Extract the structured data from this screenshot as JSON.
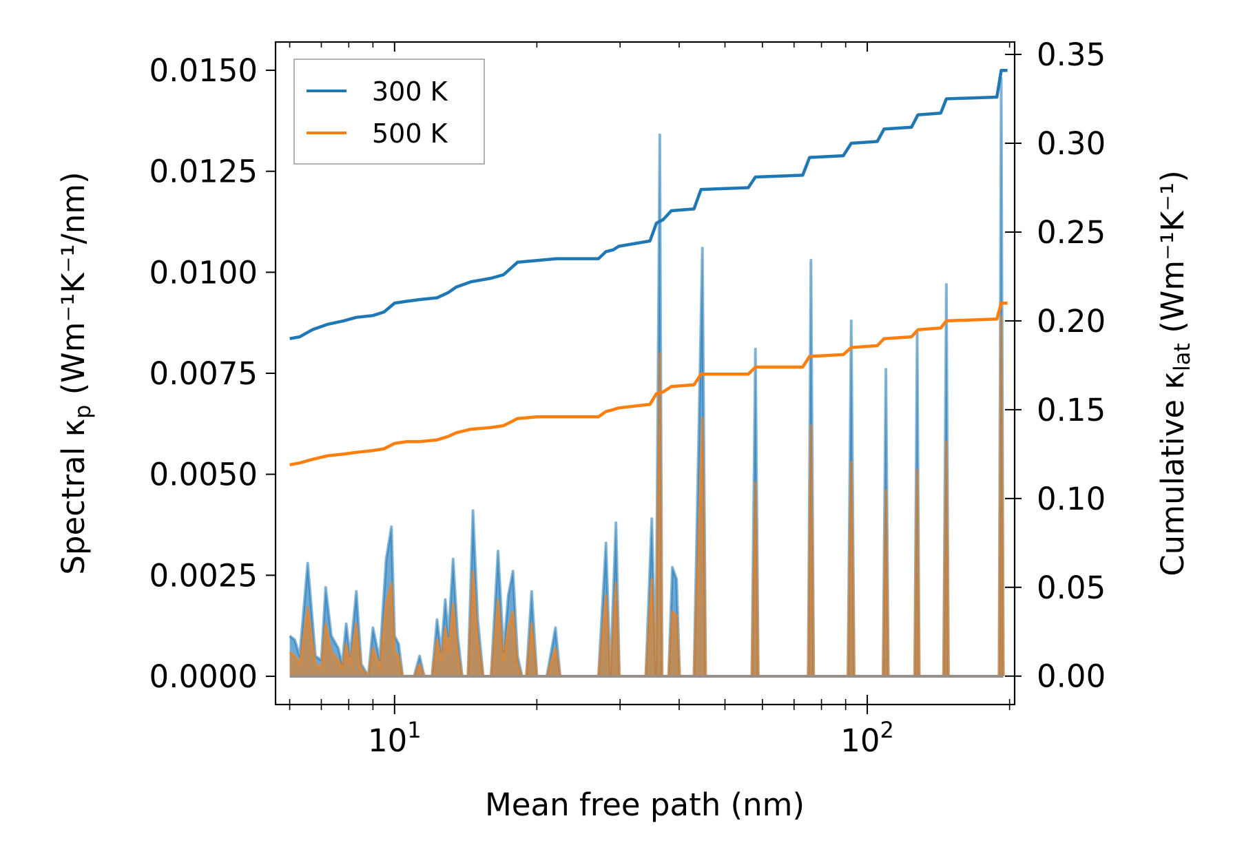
{
  "chart_data": {
    "type": "line",
    "xscale": "log",
    "xlabel": "Mean free path (nm)",
    "ylabel_left": {
      "main": "Spectral κ",
      "sub": "p",
      "units": " (Wm⁻¹K⁻¹/nm)"
    },
    "ylabel_right": {
      "main": "Cumulative κ",
      "sub": "lat",
      "units": " (Wm⁻¹K⁻¹)"
    },
    "xlim": [
      5.6,
      205
    ],
    "ylim_left": [
      -0.0007,
      0.0157
    ],
    "ylim_right": [
      -0.016,
      0.357
    ],
    "x_ticks": [
      {
        "value": 10,
        "base": "10",
        "exp": "1"
      },
      {
        "value": 100,
        "base": "10",
        "exp": "2"
      }
    ],
    "y_ticks_left": [
      {
        "value": 0.0,
        "label": "0.0000"
      },
      {
        "value": 0.0025,
        "label": "0.0025"
      },
      {
        "value": 0.005,
        "label": "0.0050"
      },
      {
        "value": 0.0075,
        "label": "0.0075"
      },
      {
        "value": 0.01,
        "label": "0.0100"
      },
      {
        "value": 0.0125,
        "label": "0.0125"
      },
      {
        "value": 0.015,
        "label": "0.0150"
      }
    ],
    "y_ticks_right": [
      {
        "value": 0.0,
        "label": "0.00"
      },
      {
        "value": 0.05,
        "label": "0.05"
      },
      {
        "value": 0.1,
        "label": "0.10"
      },
      {
        "value": 0.15,
        "label": "0.15"
      },
      {
        "value": 0.2,
        "label": "0.20"
      },
      {
        "value": 0.25,
        "label": "0.25"
      },
      {
        "value": 0.3,
        "label": "0.30"
      },
      {
        "value": 0.35,
        "label": "0.35"
      }
    ],
    "legend": {
      "position": "top-left"
    },
    "colors": {
      "300K": "#1f77b4",
      "500K": "#ff7f0e",
      "fill_300": "#5b9fd0",
      "fill_500": "#c48b52"
    },
    "series": [
      {
        "name": "300 K",
        "role": "spectral",
        "axis": "left",
        "points": [
          [
            6.0,
            0.001
          ],
          [
            6.15,
            0.0009
          ],
          [
            6.3,
            0.0005
          ],
          [
            6.55,
            0.0028
          ],
          [
            6.8,
            0.0005
          ],
          [
            7.0,
            0.0004
          ],
          [
            7.15,
            0.0022
          ],
          [
            7.35,
            0.001
          ],
          [
            7.6,
            0.0007
          ],
          [
            7.75,
            0.0003
          ],
          [
            7.9,
            0.0013
          ],
          [
            8.05,
            0.0005
          ],
          [
            8.3,
            0.0021
          ],
          [
            8.5,
            0.0003
          ],
          [
            8.8,
            0.0
          ],
          [
            9.0,
            0.0012
          ],
          [
            9.3,
            0.0004
          ],
          [
            9.6,
            0.0029
          ],
          [
            9.85,
            0.0037
          ],
          [
            10.0,
            0.001
          ],
          [
            10.2,
            0.0008
          ],
          [
            10.4,
            0.0
          ],
          [
            11.0,
            0.0
          ],
          [
            11.3,
            0.0005
          ],
          [
            11.55,
            0.0
          ],
          [
            12.0,
            0.0
          ],
          [
            12.3,
            0.0014
          ],
          [
            12.55,
            0.0006
          ],
          [
            12.8,
            0.0019
          ],
          [
            13.0,
            0.001
          ],
          [
            13.3,
            0.0029
          ],
          [
            13.6,
            0.001
          ],
          [
            13.9,
            0.0
          ],
          [
            14.3,
            0.0
          ],
          [
            14.65,
            0.0041
          ],
          [
            15.0,
            0.0014
          ],
          [
            15.4,
            0.0
          ],
          [
            16.0,
            0.0
          ],
          [
            16.55,
            0.0031
          ],
          [
            17.0,
            0.0006
          ],
          [
            17.4,
            0.002
          ],
          [
            17.8,
            0.0026
          ],
          [
            18.2,
            0.0005
          ],
          [
            18.6,
            0.0
          ],
          [
            19.0,
            0.0
          ],
          [
            19.5,
            0.0021
          ],
          [
            20.0,
            0.0
          ],
          [
            21.0,
            0.0
          ],
          [
            21.9,
            0.0012
          ],
          [
            22.4,
            0.0
          ],
          [
            23.0,
            0.0
          ],
          [
            27.0,
            0.0
          ],
          [
            28.0,
            0.0033
          ],
          [
            28.6,
            0.0
          ],
          [
            29.4,
            0.0038
          ],
          [
            29.9,
            0.0
          ],
          [
            34.0,
            0.0
          ],
          [
            35.0,
            0.0039
          ],
          [
            35.7,
            0.0
          ],
          [
            36.4,
            0.0134
          ],
          [
            36.8,
            0.0
          ],
          [
            38.0,
            0.0
          ],
          [
            38.7,
            0.0027
          ],
          [
            39.5,
            0.0024
          ],
          [
            40.1,
            0.0
          ],
          [
            43.0,
            0.0
          ],
          [
            44.8,
            0.0106
          ],
          [
            45.5,
            0.0
          ],
          [
            57.0,
            0.0
          ],
          [
            58.0,
            0.0081
          ],
          [
            58.8,
            0.0
          ],
          [
            75.0,
            0.0
          ],
          [
            76.0,
            0.0103
          ],
          [
            77.0,
            0.0
          ],
          [
            91.0,
            0.0
          ],
          [
            92.5,
            0.0088
          ],
          [
            93.8,
            0.0
          ],
          [
            108.0,
            0.0
          ],
          [
            109.5,
            0.0076
          ],
          [
            110.8,
            0.0
          ],
          [
            126.0,
            0.0
          ],
          [
            127.5,
            0.0085
          ],
          [
            128.8,
            0.0
          ],
          [
            145.0,
            0.0
          ],
          [
            147.0,
            0.0097
          ],
          [
            148.5,
            0.0
          ],
          [
            190.0,
            0.0
          ],
          [
            192.0,
            0.0148
          ],
          [
            194.0,
            0.0
          ]
        ]
      },
      {
        "name": "500 K",
        "role": "spectral",
        "axis": "left",
        "points": [
          [
            6.0,
            0.0006
          ],
          [
            6.15,
            0.0005
          ],
          [
            6.3,
            0.0003
          ],
          [
            6.55,
            0.0017
          ],
          [
            6.8,
            0.0003
          ],
          [
            7.0,
            0.0002
          ],
          [
            7.15,
            0.0013
          ],
          [
            7.35,
            0.0006
          ],
          [
            7.6,
            0.0004
          ],
          [
            7.75,
            0.0002
          ],
          [
            7.9,
            0.0008
          ],
          [
            8.05,
            0.0003
          ],
          [
            8.3,
            0.0013
          ],
          [
            8.5,
            0.0002
          ],
          [
            8.8,
            0.0
          ],
          [
            9.0,
            0.0007
          ],
          [
            9.3,
            0.0002
          ],
          [
            9.6,
            0.0018
          ],
          [
            9.85,
            0.0023
          ],
          [
            10.0,
            0.0006
          ],
          [
            10.2,
            0.0005
          ],
          [
            10.4,
            0.0
          ],
          [
            11.0,
            0.0
          ],
          [
            11.3,
            0.0003
          ],
          [
            11.55,
            0.0
          ],
          [
            12.0,
            0.0
          ],
          [
            12.3,
            0.0009
          ],
          [
            12.55,
            0.0004
          ],
          [
            12.8,
            0.0012
          ],
          [
            13.0,
            0.0006
          ],
          [
            13.3,
            0.0018
          ],
          [
            13.6,
            0.0006
          ],
          [
            13.9,
            0.0
          ],
          [
            14.3,
            0.0
          ],
          [
            14.65,
            0.0026
          ],
          [
            15.0,
            0.0009
          ],
          [
            15.4,
            0.0
          ],
          [
            16.0,
            0.0
          ],
          [
            16.55,
            0.0019
          ],
          [
            17.0,
            0.0004
          ],
          [
            17.4,
            0.0012
          ],
          [
            17.8,
            0.0016
          ],
          [
            18.2,
            0.0003
          ],
          [
            18.6,
            0.0
          ],
          [
            19.0,
            0.0
          ],
          [
            19.5,
            0.0013
          ],
          [
            20.0,
            0.0
          ],
          [
            21.0,
            0.0
          ],
          [
            21.9,
            0.0007
          ],
          [
            22.4,
            0.0
          ],
          [
            23.0,
            0.0
          ],
          [
            27.0,
            0.0
          ],
          [
            28.0,
            0.002
          ],
          [
            28.6,
            0.0
          ],
          [
            29.4,
            0.0023
          ],
          [
            29.9,
            0.0
          ],
          [
            34.0,
            0.0
          ],
          [
            35.0,
            0.0024
          ],
          [
            35.7,
            0.0
          ],
          [
            36.4,
            0.008
          ],
          [
            36.8,
            0.0
          ],
          [
            38.0,
            0.0
          ],
          [
            38.7,
            0.0016
          ],
          [
            39.5,
            0.0015
          ],
          [
            40.1,
            0.0
          ],
          [
            43.0,
            0.0
          ],
          [
            44.8,
            0.0064
          ],
          [
            45.5,
            0.0
          ],
          [
            57.0,
            0.0
          ],
          [
            58.0,
            0.0048
          ],
          [
            58.8,
            0.0
          ],
          [
            75.0,
            0.0
          ],
          [
            76.0,
            0.0062
          ],
          [
            77.0,
            0.0
          ],
          [
            91.0,
            0.0
          ],
          [
            92.5,
            0.0053
          ],
          [
            93.8,
            0.0
          ],
          [
            108.0,
            0.0
          ],
          [
            109.5,
            0.0046
          ],
          [
            110.8,
            0.0
          ],
          [
            126.0,
            0.0
          ],
          [
            127.5,
            0.0051
          ],
          [
            128.8,
            0.0
          ],
          [
            145.0,
            0.0
          ],
          [
            147.0,
            0.0058
          ],
          [
            148.5,
            0.0
          ],
          [
            190.0,
            0.0
          ],
          [
            192.0,
            0.0089
          ],
          [
            194.0,
            0.0
          ]
        ]
      },
      {
        "name": "300 K",
        "role": "cumulative",
        "axis": "right",
        "points": [
          [
            6.0,
            0.19
          ],
          [
            6.3,
            0.191
          ],
          [
            6.7,
            0.195
          ],
          [
            7.2,
            0.198
          ],
          [
            7.8,
            0.2
          ],
          [
            8.3,
            0.202
          ],
          [
            9.0,
            0.203
          ],
          [
            9.5,
            0.205
          ],
          [
            10.0,
            0.21
          ],
          [
            10.6,
            0.211
          ],
          [
            11.3,
            0.212
          ],
          [
            12.3,
            0.213
          ],
          [
            13.0,
            0.216
          ],
          [
            13.5,
            0.219
          ],
          [
            14.5,
            0.222
          ],
          [
            16.0,
            0.224
          ],
          [
            17.0,
            0.226
          ],
          [
            18.2,
            0.233
          ],
          [
            20.0,
            0.234
          ],
          [
            22.0,
            0.235
          ],
          [
            27.0,
            0.235
          ],
          [
            28.0,
            0.239
          ],
          [
            29.0,
            0.24
          ],
          [
            29.8,
            0.242
          ],
          [
            34.7,
            0.245
          ],
          [
            35.8,
            0.255
          ],
          [
            37.0,
            0.257
          ],
          [
            38.5,
            0.262
          ],
          [
            43.0,
            0.263
          ],
          [
            44.5,
            0.274
          ],
          [
            56.0,
            0.275
          ],
          [
            58.0,
            0.281
          ],
          [
            73.0,
            0.282
          ],
          [
            75.5,
            0.292
          ],
          [
            89.0,
            0.293
          ],
          [
            92.5,
            0.3
          ],
          [
            105.0,
            0.301
          ],
          [
            108.5,
            0.308
          ],
          [
            124.0,
            0.309
          ],
          [
            128.0,
            0.316
          ],
          [
            143.0,
            0.317
          ],
          [
            147.0,
            0.325
          ],
          [
            188.0,
            0.326
          ],
          [
            192.0,
            0.341
          ],
          [
            198.0,
            0.341
          ]
        ]
      },
      {
        "name": "500 K",
        "role": "cumulative",
        "axis": "right",
        "points": [
          [
            6.0,
            0.119
          ],
          [
            6.3,
            0.12
          ],
          [
            6.7,
            0.122
          ],
          [
            7.2,
            0.124
          ],
          [
            7.8,
            0.125
          ],
          [
            8.3,
            0.126
          ],
          [
            9.0,
            0.127
          ],
          [
            9.5,
            0.128
          ],
          [
            10.0,
            0.131
          ],
          [
            10.6,
            0.132
          ],
          [
            11.3,
            0.132
          ],
          [
            12.3,
            0.133
          ],
          [
            13.0,
            0.135
          ],
          [
            13.5,
            0.137
          ],
          [
            14.5,
            0.139
          ],
          [
            16.0,
            0.14
          ],
          [
            17.0,
            0.141
          ],
          [
            18.2,
            0.145
          ],
          [
            20.0,
            0.146
          ],
          [
            22.0,
            0.146
          ],
          [
            27.0,
            0.146
          ],
          [
            28.0,
            0.149
          ],
          [
            29.0,
            0.15
          ],
          [
            29.8,
            0.151
          ],
          [
            34.7,
            0.153
          ],
          [
            35.8,
            0.159
          ],
          [
            37.0,
            0.16
          ],
          [
            38.5,
            0.163
          ],
          [
            43.0,
            0.164
          ],
          [
            44.5,
            0.17
          ],
          [
            56.0,
            0.17
          ],
          [
            58.0,
            0.174
          ],
          [
            73.0,
            0.174
          ],
          [
            75.5,
            0.18
          ],
          [
            89.0,
            0.181
          ],
          [
            92.5,
            0.185
          ],
          [
            105.0,
            0.186
          ],
          [
            108.5,
            0.19
          ],
          [
            124.0,
            0.191
          ],
          [
            128.0,
            0.195
          ],
          [
            143.0,
            0.196
          ],
          [
            147.0,
            0.2
          ],
          [
            188.0,
            0.201
          ],
          [
            192.0,
            0.21
          ],
          [
            198.0,
            0.21
          ]
        ]
      }
    ]
  }
}
